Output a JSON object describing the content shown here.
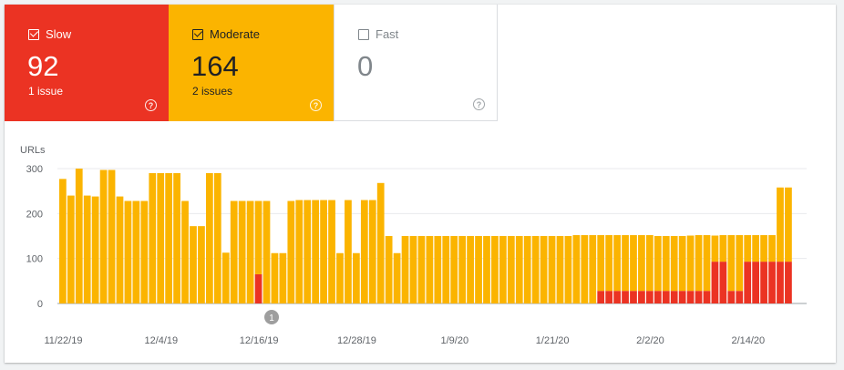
{
  "tiles": [
    {
      "label": "Slow",
      "count": "92",
      "sub": "1 issue",
      "checked": true,
      "color": "#eb3323"
    },
    {
      "label": "Moderate",
      "count": "164",
      "sub": "2 issues",
      "checked": true,
      "color": "#fbb400"
    },
    {
      "label": "Fast",
      "count": "0",
      "sub": "",
      "checked": false,
      "color": "#ffffff"
    }
  ],
  "help_glyph": "?",
  "chart_data": {
    "type": "bar",
    "stacked": true,
    "ylabel": "URLs",
    "ylim": [
      0,
      300
    ],
    "yticks": [
      "300",
      "200",
      "100",
      "0"
    ],
    "xticks": [
      {
        "label": "11/22/19",
        "index": 0
      },
      {
        "label": "12/4/19",
        "index": 12
      },
      {
        "label": "12/16/19",
        "index": 24
      },
      {
        "label": "12/28/19",
        "index": 36
      },
      {
        "label": "1/9/20",
        "index": 48
      },
      {
        "label": "1/21/20",
        "index": 60
      },
      {
        "label": "2/2/20",
        "index": 72
      },
      {
        "label": "2/14/20",
        "index": 84
      }
    ],
    "annotation": {
      "label": "1",
      "index": 26
    },
    "series": [
      {
        "name": "Slow",
        "color": "#eb3323",
        "values": [
          0,
          0,
          0,
          0,
          0,
          0,
          0,
          0,
          0,
          0,
          0,
          0,
          0,
          0,
          0,
          0,
          0,
          0,
          0,
          0,
          0,
          0,
          0,
          0,
          65,
          0,
          0,
          0,
          0,
          0,
          0,
          0,
          0,
          0,
          0,
          0,
          0,
          0,
          0,
          0,
          0,
          0,
          0,
          0,
          0,
          0,
          0,
          0,
          0,
          0,
          0,
          0,
          0,
          0,
          0,
          0,
          0,
          0,
          0,
          0,
          0,
          0,
          0,
          0,
          0,
          0,
          28,
          28,
          28,
          28,
          28,
          28,
          28,
          28,
          28,
          28,
          28,
          28,
          28,
          28,
          93,
          93,
          28,
          28,
          93,
          93,
          93,
          93,
          93,
          93
        ]
      },
      {
        "name": "Moderate",
        "color": "#fbb400",
        "values": [
          277,
          240,
          300,
          240,
          238,
          297,
          297,
          238,
          228,
          228,
          228,
          290,
          290,
          290,
          290,
          228,
          172,
          172,
          290,
          290,
          113,
          228,
          228,
          228,
          163,
          228,
          112,
          112,
          228,
          230,
          230,
          230,
          230,
          230,
          112,
          230,
          112,
          230,
          230,
          268,
          150,
          112,
          150,
          150,
          150,
          150,
          150,
          150,
          150,
          150,
          150,
          150,
          150,
          150,
          150,
          150,
          150,
          150,
          150,
          150,
          150,
          150,
          150,
          152,
          152,
          152,
          124,
          124,
          124,
          124,
          124,
          124,
          124,
          122,
          122,
          122,
          122,
          123,
          124,
          124,
          58,
          59,
          124,
          124,
          59,
          59,
          59,
          59,
          165,
          165
        ]
      }
    ]
  }
}
